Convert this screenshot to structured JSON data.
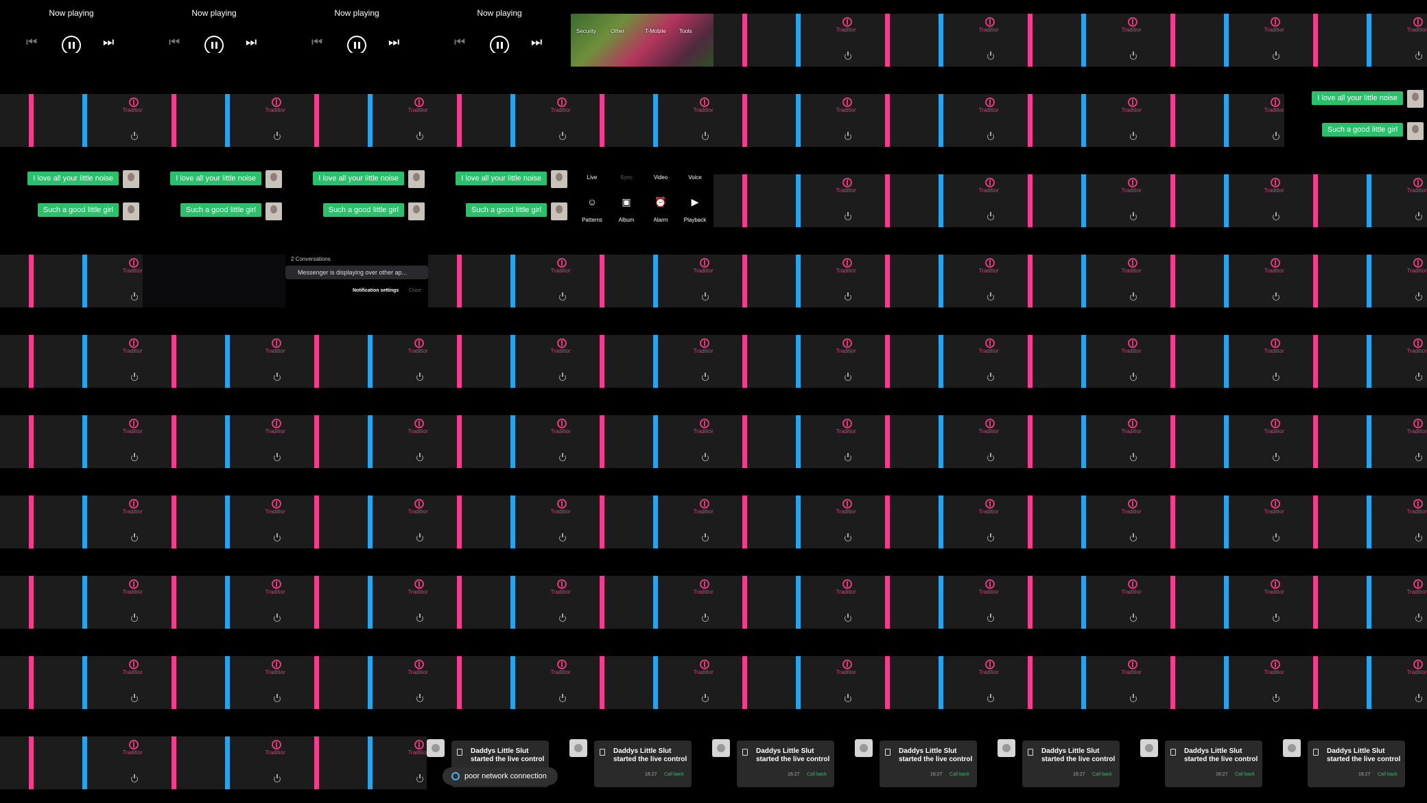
{
  "grid": {
    "columns": 10,
    "rows": 10
  },
  "strings": {
    "now_playing": "Now playing",
    "tradition": "Tradition",
    "chat_line_1": "I love all your little noise",
    "chat_line_2": "Such a good little girl",
    "modes_top": [
      "Live",
      "Sync",
      "Video",
      "Voice"
    ],
    "modes_bottom": [
      "Patterns",
      "Album",
      "Alarm",
      "Playback"
    ],
    "photo_labels": [
      "Security",
      "Other",
      "T-Mobile",
      "Tools"
    ],
    "notif_title": "2 Conversations",
    "notif_text": "Messenger is displaying over other ap...",
    "notif_settings": "Notification settings",
    "notif_close": "Close",
    "call_line_1": "Daddys Little Slut",
    "call_line_2": "started the live control",
    "call_time": "16:27",
    "call_back": "Call back",
    "poor_connection": "poor network connection"
  },
  "icons": {
    "prev": "skip-previous-icon",
    "pause": "pause-icon",
    "next": "skip-next-icon",
    "power": "power-icon",
    "logo": "tradition-logo-icon",
    "avatar": "avatar",
    "phone": "phone-icon",
    "network": "network-icon"
  },
  "colors": {
    "pink_bar": "#f23d8f",
    "blue_bar": "#2aa3ea",
    "chat_green": "#2ac16a",
    "brand_pink": "#e23a7d"
  },
  "layout_map": [
    [
      "np",
      "np",
      "np",
      "np",
      "photo",
      "ctrl",
      "ctrl",
      "ctrl",
      "ctrl",
      "ctrl"
    ],
    [
      "ctrl",
      "ctrl",
      "ctrl",
      "ctrl",
      "ctrl",
      "ctrl",
      "ctrl",
      "ctrl",
      "ctrl",
      "chat"
    ],
    [
      "chat",
      "chat",
      "chat",
      "chat",
      "modes",
      "ctrl",
      "ctrl",
      "ctrl",
      "ctrl",
      "ctrl"
    ],
    [
      "ctrl",
      "dark",
      "notif",
      "ctrl",
      "ctrl",
      "ctrl",
      "ctrl",
      "ctrl",
      "ctrl",
      "ctrl"
    ],
    [
      "ctrl",
      "ctrl",
      "ctrl",
      "ctrl",
      "ctrl",
      "ctrl",
      "ctrl",
      "ctrl",
      "ctrl",
      "ctrl"
    ],
    [
      "ctrl",
      "ctrl",
      "ctrl",
      "ctrl",
      "ctrl",
      "ctrl",
      "ctrl",
      "ctrl",
      "ctrl",
      "ctrl"
    ],
    [
      "ctrl",
      "ctrl",
      "ctrl",
      "ctrl",
      "ctrl",
      "ctrl",
      "ctrl",
      "ctrl",
      "ctrl",
      "ctrl"
    ],
    [
      "ctrl",
      "ctrl",
      "ctrl",
      "ctrl",
      "ctrl",
      "ctrl",
      "ctrl",
      "ctrl",
      "ctrl",
      "ctrl"
    ],
    [
      "ctrl",
      "ctrl",
      "ctrl",
      "ctrl",
      "ctrl",
      "ctrl",
      "ctrl",
      "ctrl",
      "ctrl",
      "ctrl"
    ],
    [
      "ctrl",
      "ctrl",
      "ctrl",
      "call",
      "call",
      "call",
      "call",
      "call",
      "call",
      "call"
    ]
  ]
}
